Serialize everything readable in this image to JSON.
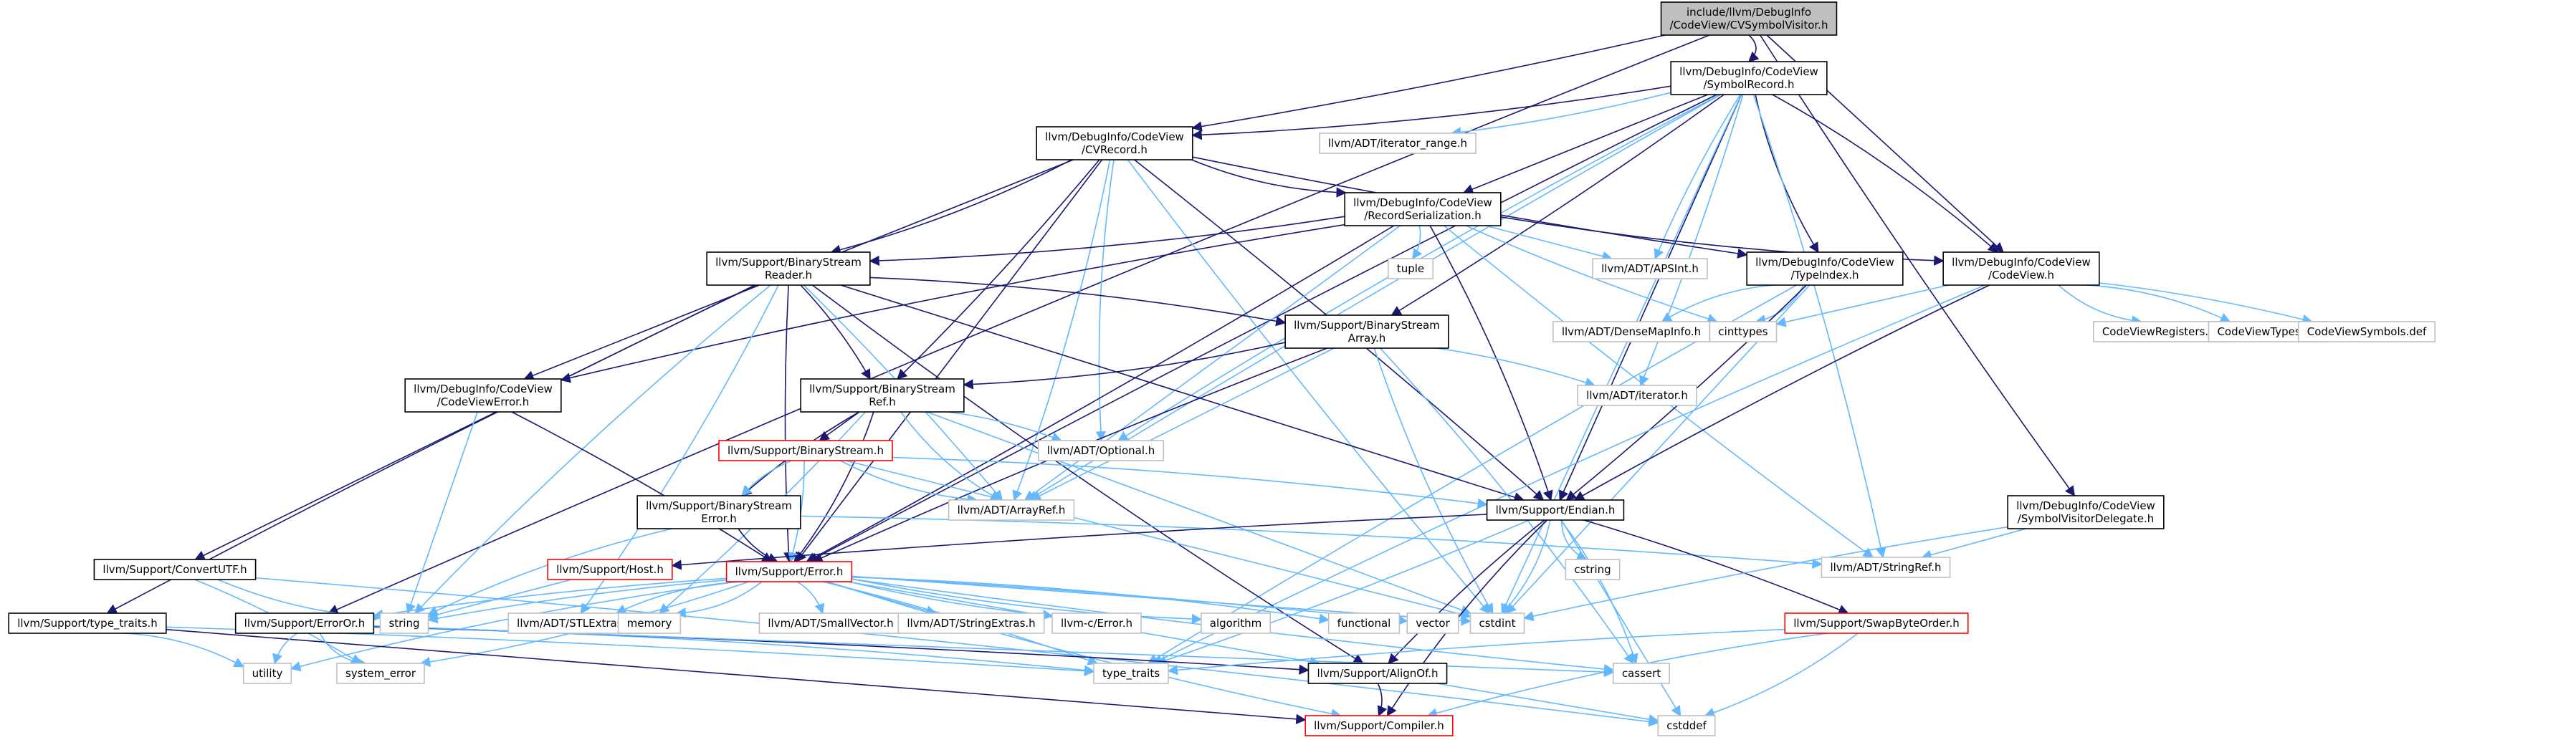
{
  "nodes": {
    "root": {
      "lines": [
        "include/llvm/DebugInfo",
        "/CodeView/CVSymbolVisitor.h"
      ],
      "kind": "root"
    },
    "symrec": {
      "lines": [
        "llvm/DebugInfo/CodeView",
        "/SymbolRecord.h"
      ],
      "kind": "doc"
    },
    "cvrecord": {
      "lines": [
        "llvm/DebugInfo/CodeView",
        "/CVRecord.h"
      ],
      "kind": "doc"
    },
    "iterrange": {
      "lines": [
        "llvm/ADT/iterator_range.h"
      ],
      "kind": "ext"
    },
    "recser": {
      "lines": [
        "llvm/DebugInfo/CodeView",
        "/RecordSerialization.h"
      ],
      "kind": "doc"
    },
    "tuple": {
      "lines": [
        "tuple"
      ],
      "kind": "ext"
    },
    "apsint": {
      "lines": [
        "llvm/ADT/APSInt.h"
      ],
      "kind": "ext"
    },
    "typeindex": {
      "lines": [
        "llvm/DebugInfo/CodeView",
        "/TypeIndex.h"
      ],
      "kind": "doc"
    },
    "codeview": {
      "lines": [
        "llvm/DebugInfo/CodeView",
        "/CodeView.h"
      ],
      "kind": "doc"
    },
    "bsreader": {
      "lines": [
        "llvm/Support/BinaryStream",
        "Reader.h"
      ],
      "kind": "doc"
    },
    "densemap": {
      "lines": [
        "llvm/ADT/DenseMapInfo.h"
      ],
      "kind": "ext"
    },
    "cinttypes": {
      "lines": [
        "cinttypes"
      ],
      "kind": "ext"
    },
    "cvregs": {
      "lines": [
        "CodeViewRegisters.def"
      ],
      "kind": "ext"
    },
    "cvtypes": {
      "lines": [
        "CodeViewTypes.def"
      ],
      "kind": "ext"
    },
    "cvsyms": {
      "lines": [
        "CodeViewSymbols.def"
      ],
      "kind": "ext"
    },
    "bsarray": {
      "lines": [
        "llvm/Support/BinaryStream",
        "Array.h"
      ],
      "kind": "doc"
    },
    "iterator": {
      "lines": [
        "llvm/ADT/iterator.h"
      ],
      "kind": "ext"
    },
    "cverror": {
      "lines": [
        "llvm/DebugInfo/CodeView",
        "/CodeViewError.h"
      ],
      "kind": "doc"
    },
    "bsref": {
      "lines": [
        "llvm/Support/BinaryStream",
        "Ref.h"
      ],
      "kind": "doc"
    },
    "optional": {
      "lines": [
        "llvm/ADT/Optional.h"
      ],
      "kind": "ext"
    },
    "bstream": {
      "lines": [
        "llvm/Support/BinaryStream.h"
      ],
      "kind": "red"
    },
    "bserror": {
      "lines": [
        "llvm/Support/BinaryStream",
        "Error.h"
      ],
      "kind": "doc"
    },
    "arrayref": {
      "lines": [
        "llvm/ADT/ArrayRef.h"
      ],
      "kind": "ext"
    },
    "endian": {
      "lines": [
        "llvm/Support/Endian.h"
      ],
      "kind": "doc"
    },
    "visdelegate": {
      "lines": [
        "llvm/DebugInfo/CodeView",
        "/SymbolVisitorDelegate.h"
      ],
      "kind": "doc"
    },
    "convutf": {
      "lines": [
        "llvm/Support/ConvertUTF.h"
      ],
      "kind": "doc"
    },
    "host": {
      "lines": [
        "llvm/Support/Host.h"
      ],
      "kind": "red"
    },
    "error": {
      "lines": [
        "llvm/Support/Error.h"
      ],
      "kind": "red"
    },
    "cstring": {
      "lines": [
        "cstring"
      ],
      "kind": "ext"
    },
    "stringref": {
      "lines": [
        "llvm/ADT/StringRef.h"
      ],
      "kind": "ext"
    },
    "typetraitsh": {
      "lines": [
        "llvm/Support/type_traits.h"
      ],
      "kind": "doc"
    },
    "erroror": {
      "lines": [
        "llvm/Support/ErrorOr.h"
      ],
      "kind": "doc"
    },
    "string": {
      "lines": [
        "string"
      ],
      "kind": "ext"
    },
    "stlextras": {
      "lines": [
        "llvm/ADT/STLExtras.h"
      ],
      "kind": "ext"
    },
    "memory": {
      "lines": [
        "memory"
      ],
      "kind": "ext"
    },
    "smallvec": {
      "lines": [
        "llvm/ADT/SmallVector.h"
      ],
      "kind": "ext"
    },
    "strextras": {
      "lines": [
        "llvm/ADT/StringExtras.h"
      ],
      "kind": "ext"
    },
    "cerror": {
      "lines": [
        "llvm-c/Error.h"
      ],
      "kind": "ext"
    },
    "algorithm": {
      "lines": [
        "algorithm"
      ],
      "kind": "ext"
    },
    "functional": {
      "lines": [
        "functional"
      ],
      "kind": "ext"
    },
    "vector": {
      "lines": [
        "vector"
      ],
      "kind": "ext"
    },
    "cstdint": {
      "lines": [
        "cstdint"
      ],
      "kind": "ext"
    },
    "swapbyte": {
      "lines": [
        "llvm/Support/SwapByteOrder.h"
      ],
      "kind": "red"
    },
    "utility": {
      "lines": [
        "utility"
      ],
      "kind": "ext"
    },
    "syserror": {
      "lines": [
        "system_error"
      ],
      "kind": "ext"
    },
    "typetraits": {
      "lines": [
        "type_traits"
      ],
      "kind": "ext"
    },
    "alignof": {
      "lines": [
        "llvm/Support/AlignOf.h"
      ],
      "kind": "doc"
    },
    "cassert": {
      "lines": [
        "cassert"
      ],
      "kind": "ext"
    },
    "compiler": {
      "lines": [
        "llvm/Support/Compiler.h"
      ],
      "kind": "red"
    },
    "cstddef": {
      "lines": [
        "cstddef"
      ],
      "kind": "ext"
    }
  },
  "edges": [
    [
      "root",
      "symrec"
    ],
    [
      "root",
      "cvrecord"
    ],
    [
      "root",
      "codeview"
    ],
    [
      "root",
      "visdelegate"
    ],
    [
      "root",
      "erroror"
    ],
    [
      "symrec",
      "cvrecord"
    ],
    [
      "symrec",
      "iterrange"
    ],
    [
      "symrec",
      "recser"
    ],
    [
      "symrec",
      "apsint"
    ],
    [
      "symrec",
      "typeindex"
    ],
    [
      "symrec",
      "codeview"
    ],
    [
      "symrec",
      "bsarray"
    ],
    [
      "symrec",
      "endian"
    ],
    [
      "symrec",
      "arrayref"
    ],
    [
      "symrec",
      "optional"
    ],
    [
      "symrec",
      "stringref"
    ],
    [
      "symrec",
      "iterator"
    ],
    [
      "symrec",
      "cstdint"
    ],
    [
      "symrec",
      "error"
    ],
    [
      "cvrecord",
      "recser"
    ],
    [
      "cvrecord",
      "bsreader"
    ],
    [
      "cvrecord",
      "bsref"
    ],
    [
      "cvrecord",
      "cverror"
    ],
    [
      "cvrecord",
      "typeindex"
    ],
    [
      "cvrecord",
      "optional"
    ],
    [
      "cvrecord",
      "arrayref"
    ],
    [
      "cvrecord",
      "endian"
    ],
    [
      "cvrecord",
      "error"
    ],
    [
      "cvrecord",
      "cstdint"
    ],
    [
      "recser",
      "codeview"
    ],
    [
      "recser",
      "bsreader"
    ],
    [
      "recser",
      "tuple"
    ],
    [
      "recser",
      "apsint"
    ],
    [
      "recser",
      "cinttypes"
    ],
    [
      "recser",
      "cverror"
    ],
    [
      "recser",
      "endian"
    ],
    [
      "recser",
      "error"
    ],
    [
      "recser",
      "arrayref"
    ],
    [
      "recser",
      "stringref"
    ],
    [
      "typeindex",
      "densemap"
    ],
    [
      "typeindex",
      "cinttypes"
    ],
    [
      "typeindex",
      "endian"
    ],
    [
      "typeindex",
      "cstdint"
    ],
    [
      "typeindex",
      "typetraits"
    ],
    [
      "codeview",
      "cvregs"
    ],
    [
      "codeview",
      "cvtypes"
    ],
    [
      "codeview",
      "cvsyms"
    ],
    [
      "codeview",
      "cinttypes"
    ],
    [
      "codeview",
      "endian"
    ],
    [
      "codeview",
      "typetraits"
    ],
    [
      "bsreader",
      "bsarray"
    ],
    [
      "bsreader",
      "bsref"
    ],
    [
      "bsreader",
      "convutf"
    ],
    [
      "bsreader",
      "typetraitsh"
    ],
    [
      "bsreader",
      "string"
    ],
    [
      "bsreader",
      "stlextras"
    ],
    [
      "bsreader",
      "arrayref"
    ],
    [
      "bsreader",
      "endian"
    ],
    [
      "bsreader",
      "error"
    ],
    [
      "bsreader",
      "alignof"
    ],
    [
      "bsarray",
      "bsref"
    ],
    [
      "bsarray",
      "iterator"
    ],
    [
      "bsarray",
      "arrayref"
    ],
    [
      "bsarray",
      "error"
    ],
    [
      "bsarray",
      "cstdint"
    ],
    [
      "bsarray",
      "cassert"
    ],
    [
      "bsref",
      "optional"
    ],
    [
      "bsref",
      "bstream"
    ],
    [
      "bsref",
      "bserror"
    ],
    [
      "bsref",
      "arrayref"
    ],
    [
      "bsref",
      "error"
    ],
    [
      "bsref",
      "memory"
    ],
    [
      "bsref",
      "cstdint"
    ],
    [
      "bstream",
      "bserror"
    ],
    [
      "bstream",
      "arrayref"
    ],
    [
      "bstream",
      "endian"
    ],
    [
      "bstream",
      "error"
    ],
    [
      "bstream",
      "cstdint"
    ],
    [
      "bserror",
      "error"
    ],
    [
      "bserror",
      "string"
    ],
    [
      "bserror",
      "stringref"
    ],
    [
      "cverror",
      "error"
    ],
    [
      "cverror",
      "string"
    ],
    [
      "endian",
      "host"
    ],
    [
      "endian",
      "cstring"
    ],
    [
      "endian",
      "cstdint"
    ],
    [
      "endian",
      "swapbyte"
    ],
    [
      "endian",
      "cstddef"
    ],
    [
      "endian",
      "alignof"
    ],
    [
      "endian",
      "compiler"
    ],
    [
      "endian",
      "cassert"
    ],
    [
      "endian",
      "typetraits"
    ],
    [
      "visdelegate",
      "stringref"
    ],
    [
      "visdelegate",
      "cstdint"
    ],
    [
      "convutf",
      "string"
    ],
    [
      "convutf",
      "cstddef"
    ],
    [
      "convutf",
      "syserror"
    ],
    [
      "host",
      "string"
    ],
    [
      "error",
      "string"
    ],
    [
      "error",
      "stlextras"
    ],
    [
      "error",
      "memory"
    ],
    [
      "error",
      "smallvec"
    ],
    [
      "error",
      "strextras"
    ],
    [
      "error",
      "cerror"
    ],
    [
      "error",
      "algorithm"
    ],
    [
      "error",
      "functional"
    ],
    [
      "error",
      "vector"
    ],
    [
      "error",
      "cstdint"
    ],
    [
      "error",
      "erroror"
    ],
    [
      "error",
      "utility"
    ],
    [
      "error",
      "syserror"
    ],
    [
      "error",
      "typetraits"
    ],
    [
      "error",
      "alignof"
    ],
    [
      "error",
      "cassert"
    ],
    [
      "error",
      "compiler"
    ],
    [
      "typetraitsh",
      "utility"
    ],
    [
      "typetraitsh",
      "typetraits"
    ],
    [
      "typetraitsh",
      "compiler"
    ],
    [
      "erroror",
      "utility"
    ],
    [
      "erroror",
      "syserror"
    ],
    [
      "erroror",
      "typetraits"
    ],
    [
      "erroror",
      "alignof"
    ],
    [
      "erroror",
      "cassert"
    ],
    [
      "swapbyte",
      "typetraits"
    ],
    [
      "swapbyte",
      "compiler"
    ],
    [
      "swapbyte",
      "cstddef"
    ],
    [
      "alignof",
      "compiler"
    ],
    [
      "alignof",
      "cstddef"
    ]
  ]
}
